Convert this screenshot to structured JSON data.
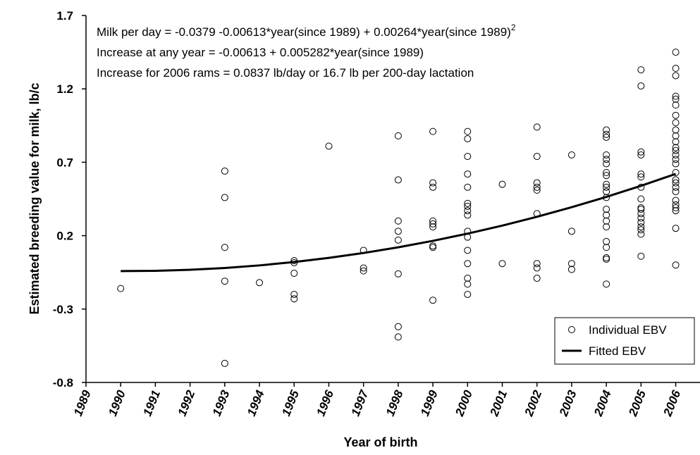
{
  "chart_data": {
    "type": "scatter",
    "annotations": [
      {
        "text": "Milk per day = -0.0379 -0.00613*year(since 1989) + 0.00264*year(since 1989)",
        "superscript": "2"
      },
      {
        "text": "Increase at any year = -0.00613 + 0.005282*year(since 1989)"
      },
      {
        "text": "Increase for 2006 rams = 0.0837 lb/day or 16.7 lb per 200-day lactation"
      }
    ],
    "xlabel": "Year of birth",
    "ylabel": "Estimated breeding value for milk, lb/c",
    "xlim": [
      1989,
      2006.7
    ],
    "xticks": [
      1989,
      1990,
      1991,
      1992,
      1993,
      1994,
      1995,
      1996,
      1997,
      1998,
      1999,
      2000,
      2001,
      2002,
      2003,
      2004,
      2005,
      2006
    ],
    "ylim": [
      -0.8,
      1.7
    ],
    "yticks": [
      -0.8,
      -0.3,
      0.2,
      0.7,
      1.2,
      1.7
    ],
    "legend": "lower right",
    "series": [
      {
        "name": "Individual EBV",
        "color": "#000000",
        "kind": "markers",
        "x": [
          1990,
          1993,
          1993,
          1993,
          1993,
          1993,
          1994,
          1995,
          1995,
          1995,
          1995,
          1995,
          1996,
          1997,
          1997,
          1997,
          1998,
          1998,
          1998,
          1998,
          1998,
          1998,
          1998,
          1998,
          1999,
          1999,
          1999,
          1999,
          1999,
          1999,
          1999,
          1999,
          1999,
          2000,
          2000,
          2000,
          2000,
          2000,
          2000,
          2000,
          2000,
          2000,
          2000,
          2000,
          2000,
          2000,
          2000,
          2000,
          2000,
          2001,
          2001,
          2002,
          2002,
          2002,
          2002,
          2002,
          2002,
          2002,
          2002,
          2002,
          2003,
          2003,
          2003,
          2003,
          2004,
          2004,
          2004,
          2004,
          2004,
          2004,
          2004,
          2004,
          2004,
          2004,
          2004,
          2004,
          2004,
          2004,
          2004,
          2004,
          2004,
          2004,
          2004,
          2004,
          2004,
          2005,
          2005,
          2005,
          2005,
          2005,
          2005,
          2005,
          2005,
          2005,
          2005,
          2005,
          2005,
          2005,
          2005,
          2005,
          2005,
          2005,
          2006,
          2006,
          2006,
          2006,
          2006,
          2006,
          2006,
          2006,
          2006,
          2006,
          2006,
          2006,
          2006,
          2006,
          2006,
          2006,
          2006,
          2006,
          2006,
          2006,
          2006,
          2006,
          2006,
          2006,
          2006,
          2006,
          2006
        ],
        "values": [
          -0.16,
          0.64,
          0.46,
          0.12,
          -0.11,
          -0.67,
          -0.12,
          0.03,
          0.016,
          -0.056,
          -0.2,
          -0.23,
          0.81,
          0.1,
          -0.02,
          -0.04,
          0.88,
          0.58,
          0.3,
          0.23,
          0.17,
          -0.06,
          -0.42,
          -0.49,
          0.91,
          0.56,
          0.53,
          0.3,
          0.28,
          0.26,
          0.13,
          0.12,
          -0.24,
          0.91,
          0.86,
          0.74,
          0.62,
          0.53,
          0.42,
          0.4,
          0.37,
          0.34,
          0.23,
          0.19,
          0.1,
          0.01,
          -0.09,
          -0.13,
          -0.2,
          0.55,
          0.01,
          0.94,
          0.74,
          0.56,
          0.53,
          0.51,
          0.35,
          0.01,
          -0.02,
          -0.09,
          0.75,
          0.23,
          0.01,
          -0.03,
          0.92,
          0.89,
          0.87,
          0.75,
          0.72,
          0.69,
          0.63,
          0.61,
          0.55,
          0.53,
          0.5,
          0.46,
          0.38,
          0.34,
          0.3,
          0.26,
          0.16,
          0.12,
          0.05,
          0.04,
          -0.13,
          1.33,
          1.22,
          0.77,
          0.75,
          0.62,
          0.6,
          0.53,
          0.45,
          0.39,
          0.38,
          0.35,
          0.32,
          0.29,
          0.26,
          0.24,
          0.21,
          0.06,
          1.45,
          1.34,
          1.29,
          1.15,
          1.13,
          1.09,
          1.02,
          0.97,
          0.92,
          0.88,
          0.84,
          0.8,
          0.78,
          0.75,
          0.72,
          0.69,
          0.63,
          0.58,
          0.56,
          0.53,
          0.5,
          0.44,
          0.41,
          0.39,
          0.37,
          0.25,
          0.0
        ]
      },
      {
        "name": "Fitted EBV",
        "color": "#000000",
        "kind": "line",
        "x": [
          1990,
          1991,
          1992,
          1993,
          1994,
          1995,
          1996,
          1997,
          1998,
          1999,
          2000,
          2001,
          2002,
          2003,
          2004,
          2005,
          2006
        ],
        "values": [
          -0.04139,
          -0.0396,
          -0.03253,
          -0.02018,
          -0.00255,
          0.02036,
          0.04855,
          0.08202,
          0.12077,
          0.1648,
          0.21411,
          0.2687,
          0.32857,
          0.39372,
          0.46415,
          0.53986,
          0.62085
        ]
      }
    ]
  }
}
